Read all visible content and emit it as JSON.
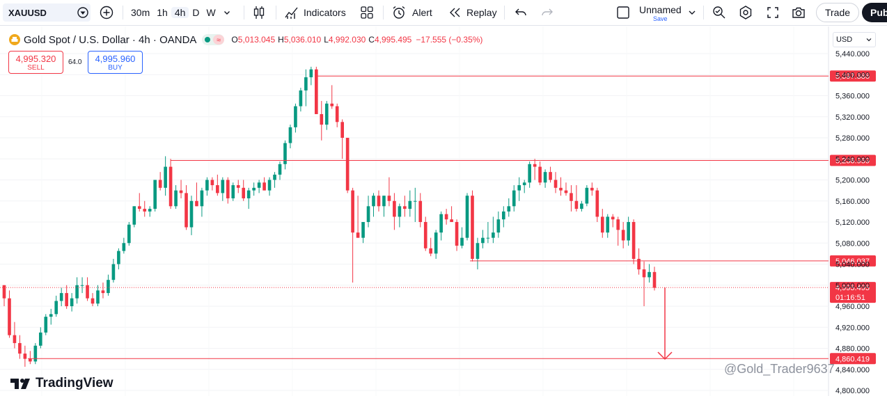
{
  "toolbar": {
    "symbol": "XAUUSD",
    "intervals": [
      "30m",
      "1h",
      "4h",
      "D",
      "W"
    ],
    "active_interval": "4h",
    "indicators_label": "Indicators",
    "alert_label": "Alert",
    "replay_label": "Replay",
    "layout_name": "Unnamed",
    "layout_status": "Save",
    "trade_label": "Trade",
    "publish_label": "Pub"
  },
  "legend": {
    "title": "Gold Spot / U.S. Dollar · 4h · OANDA",
    "open_label": "O",
    "open": "5,013.045",
    "high_label": "H",
    "high": "5,036.010",
    "low_label": "L",
    "low": "4,992.030",
    "close_label": "C",
    "close": "4,995.495",
    "change": "−17.555 (−0.35%)"
  },
  "trade_panel": {
    "sell_price": "4,995.320",
    "sell_label": "SELL",
    "spread": "64.0",
    "buy_price": "4,995.960",
    "buy_label": "BUY"
  },
  "price_axis": {
    "currency": "USD",
    "ticks": [
      "5,440.000",
      "5,400.000",
      "5,360.000",
      "5,320.000",
      "5,280.000",
      "5,240.000",
      "5,200.000",
      "5,160.000",
      "5,120.000",
      "5,080.000",
      "5,040.000",
      "5,000.000",
      "4,960.000",
      "4,920.000",
      "4,880.000",
      "4,840.000",
      "4,800.000"
    ],
    "last_price": "4,995.495",
    "countdown": "01:16:51"
  },
  "levels": [
    {
      "price": 5397.386,
      "label": "5,397.386"
    },
    {
      "price": 5236.959,
      "label": "5,236.959"
    },
    {
      "price": 5046.037,
      "label": "5,046.037"
    },
    {
      "price": 4860.419,
      "label": "4,860.419"
    }
  ],
  "branding": {
    "logo_text": "TradingView",
    "watermark": "@Gold_Trader9637"
  },
  "colors": {
    "up": "#089981",
    "down": "#f23645",
    "level_line": "#f23645",
    "accent": "#2962ff"
  },
  "chart_data": {
    "type": "candlestick",
    "interval": "4h",
    "y_range": [
      4800,
      5440
    ],
    "candles": [
      [
        5000,
        5000,
        4960,
        4975
      ],
      [
        4975,
        4990,
        4900,
        4905
      ],
      [
        4905,
        4930,
        4880,
        4890
      ],
      [
        4890,
        4905,
        4860,
        4870
      ],
      [
        4870,
        4885,
        4845,
        4860
      ],
      [
        4860,
        4875,
        4850,
        4855
      ],
      [
        4855,
        4890,
        4850,
        4885
      ],
      [
        4885,
        4920,
        4880,
        4910
      ],
      [
        4910,
        4945,
        4905,
        4940
      ],
      [
        4940,
        4955,
        4925,
        4945
      ],
      [
        4945,
        4980,
        4940,
        4970
      ],
      [
        4970,
        4995,
        4960,
        4985
      ],
      [
        4985,
        5000,
        4955,
        4960
      ],
      [
        4960,
        4985,
        4950,
        4975
      ],
      [
        4975,
        5015,
        4965,
        5000
      ],
      [
        5000,
        5015,
        4985,
        5000
      ],
      [
        5000,
        5015,
        4970,
        4975
      ],
      [
        4975,
        4985,
        4960,
        4965
      ],
      [
        4965,
        5000,
        4960,
        4990
      ],
      [
        4990,
        5005,
        4975,
        4985
      ],
      [
        4985,
        5020,
        4980,
        5010
      ],
      [
        5010,
        5050,
        5005,
        5040
      ],
      [
        5040,
        5070,
        5030,
        5065
      ],
      [
        5065,
        5090,
        5060,
        5080
      ],
      [
        5080,
        5120,
        5075,
        5115
      ],
      [
        5115,
        5150,
        5110,
        5150
      ],
      [
        5150,
        5175,
        5140,
        5145
      ],
      [
        5145,
        5160,
        5130,
        5140
      ],
      [
        5140,
        5150,
        5130,
        5145
      ],
      [
        5145,
        5200,
        5140,
        5200
      ],
      [
        5200,
        5215,
        5180,
        5185
      ],
      [
        5185,
        5245,
        5170,
        5225
      ],
      [
        5225,
        5240,
        5145,
        5150
      ],
      [
        5150,
        5190,
        5145,
        5180
      ],
      [
        5180,
        5200,
        5165,
        5175
      ],
      [
        5175,
        5190,
        5105,
        5110
      ],
      [
        5110,
        5170,
        5095,
        5160
      ],
      [
        5160,
        5195,
        5150,
        5150
      ],
      [
        5150,
        5185,
        5130,
        5180
      ],
      [
        5180,
        5205,
        5170,
        5200
      ],
      [
        5200,
        5205,
        5180,
        5190
      ],
      [
        5190,
        5210,
        5170,
        5175
      ],
      [
        5175,
        5205,
        5160,
        5200
      ],
      [
        5200,
        5205,
        5155,
        5165
      ],
      [
        5165,
        5195,
        5160,
        5190
      ],
      [
        5190,
        5200,
        5175,
        5185
      ],
      [
        5185,
        5200,
        5160,
        5165
      ],
      [
        5165,
        5185,
        5145,
        5180
      ],
      [
        5180,
        5195,
        5170,
        5185
      ],
      [
        5185,
        5200,
        5175,
        5195
      ],
      [
        5195,
        5205,
        5180,
        5180
      ],
      [
        5180,
        5205,
        5170,
        5200
      ],
      [
        5200,
        5215,
        5185,
        5210
      ],
      [
        5210,
        5235,
        5200,
        5230
      ],
      [
        5230,
        5275,
        5220,
        5270
      ],
      [
        5270,
        5305,
        5260,
        5300
      ],
      [
        5300,
        5345,
        5290,
        5340
      ],
      [
        5340,
        5375,
        5330,
        5370
      ],
      [
        5370,
        5410,
        5340,
        5395
      ],
      [
        5395,
        5415,
        5380,
        5410
      ],
      [
        5410,
        5415,
        5325,
        5325
      ],
      [
        5325,
        5350,
        5275,
        5305
      ],
      [
        5305,
        5350,
        5295,
        5345
      ],
      [
        5345,
        5380,
        5335,
        5340
      ],
      [
        5340,
        5345,
        5300,
        5310
      ],
      [
        5310,
        5315,
        5240,
        5280
      ],
      [
        5280,
        5280,
        5175,
        5180
      ],
      [
        5180,
        5185,
        5005,
        5100
      ],
      [
        5100,
        5170,
        5090,
        5090
      ],
      [
        5090,
        5120,
        5080,
        5120
      ],
      [
        5120,
        5170,
        5110,
        5150
      ],
      [
        5150,
        5175,
        5130,
        5170
      ],
      [
        5170,
        5180,
        5140,
        5150
      ],
      [
        5150,
        5170,
        5130,
        5170
      ],
      [
        5170,
        5205,
        5150,
        5160
      ],
      [
        5160,
        5175,
        5105,
        5130
      ],
      [
        5130,
        5155,
        5110,
        5150
      ],
      [
        5150,
        5170,
        5130,
        5145
      ],
      [
        5145,
        5180,
        5130,
        5160
      ],
      [
        5160,
        5185,
        5120,
        5160
      ],
      [
        5160,
        5175,
        5110,
        5120
      ],
      [
        5120,
        5130,
        5065,
        5070
      ],
      [
        5070,
        5090,
        5055,
        5060
      ],
      [
        5060,
        5105,
        5050,
        5100
      ],
      [
        5100,
        5140,
        5085,
        5135
      ],
      [
        5135,
        5145,
        5115,
        5125
      ],
      [
        5125,
        5150,
        5120,
        5120
      ],
      [
        5120,
        5125,
        5065,
        5075
      ],
      [
        5075,
        5110,
        5070,
        5090
      ],
      [
        5090,
        5175,
        5085,
        5170
      ],
      [
        5170,
        5180,
        5045,
        5050
      ],
      [
        5050,
        5090,
        5030,
        5080
      ],
      [
        5080,
        5105,
        5070,
        5090
      ],
      [
        5090,
        5120,
        5080,
        5090
      ],
      [
        5090,
        5130,
        5080,
        5100
      ],
      [
        5100,
        5140,
        5090,
        5125
      ],
      [
        5125,
        5150,
        5110,
        5140
      ],
      [
        5140,
        5165,
        5130,
        5150
      ],
      [
        5150,
        5190,
        5140,
        5180
      ],
      [
        5180,
        5205,
        5160,
        5190
      ],
      [
        5190,
        5200,
        5175,
        5195
      ],
      [
        5195,
        5235,
        5185,
        5230
      ],
      [
        5230,
        5240,
        5200,
        5225
      ],
      [
        5225,
        5235,
        5190,
        5195
      ],
      [
        5195,
        5220,
        5185,
        5215
      ],
      [
        5215,
        5225,
        5195,
        5200
      ],
      [
        5200,
        5215,
        5175,
        5185
      ],
      [
        5185,
        5205,
        5170,
        5180
      ],
      [
        5180,
        5195,
        5170,
        5175
      ],
      [
        5175,
        5190,
        5140,
        5160
      ],
      [
        5160,
        5190,
        5140,
        5145
      ],
      [
        5145,
        5160,
        5140,
        5155
      ],
      [
        5155,
        5190,
        5150,
        5185
      ],
      [
        5185,
        5195,
        5170,
        5180
      ],
      [
        5180,
        5185,
        5120,
        5130
      ],
      [
        5130,
        5145,
        5090,
        5100
      ],
      [
        5100,
        5135,
        5090,
        5130
      ],
      [
        5130,
        5135,
        5110,
        5125
      ],
      [
        5125,
        5130,
        5075,
        5105
      ],
      [
        5105,
        5120,
        5070,
        5085
      ],
      [
        5085,
        5130,
        5075,
        5120
      ],
      [
        5120,
        5125,
        5040,
        5050
      ],
      [
        5050,
        5070,
        5020,
        5030
      ],
      [
        5030,
        5045,
        4960,
        5015
      ],
      [
        5015,
        5040,
        5005,
        5025
      ],
      [
        5025,
        5035,
        4990,
        4995
      ]
    ]
  }
}
